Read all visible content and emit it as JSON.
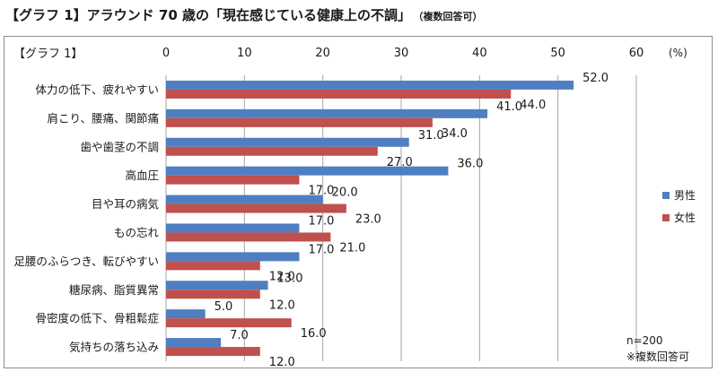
{
  "page_title": "【グラフ 1】アラウンド 70 歳の「現在感じている健康上の不調」",
  "page_title_note": "（複数回答可）",
  "colors": {
    "male": "#4f7fc0",
    "female": "#c0504d",
    "grid": "#a6a6a6"
  },
  "chart_data": {
    "type": "bar",
    "orientation": "horizontal",
    "title": "【グラフ 1】",
    "unit": "(%)",
    "xlim": [
      0,
      60
    ],
    "xticks": [
      0,
      10,
      20,
      30,
      40,
      50,
      60
    ],
    "grid": true,
    "legend_position": "right",
    "categories": [
      "体力の低下、疲れやすい",
      "肩こり、腰痛、関節痛",
      "歯や歯茎の不調",
      "高血圧",
      "目や耳の病気",
      "もの忘れ",
      "足腰のふらつき、転びやすい",
      "糖尿病、脂質異常",
      "骨密度の低下、骨粗鬆症",
      "気持ちの落ち込み"
    ],
    "series": [
      {
        "name": "男性",
        "values": [
          52.0,
          41.0,
          31.0,
          36.0,
          20.0,
          17.0,
          17.0,
          13.0,
          5.0,
          7.0
        ]
      },
      {
        "name": "女性",
        "values": [
          44.0,
          34.0,
          27.0,
          17.0,
          23.0,
          21.0,
          12.0,
          12.0,
          16.0,
          12.0
        ]
      }
    ],
    "notes": [
      "n=200",
      "※複数回答可"
    ]
  }
}
